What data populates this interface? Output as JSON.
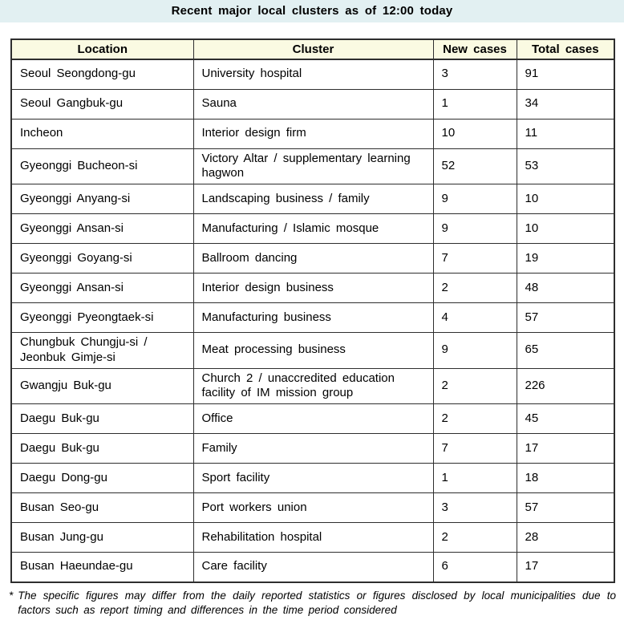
{
  "title": "Recent major local clusters as of 12:00 today",
  "colors": {
    "title_bar_bg": "#E2F0F2",
    "header_bg": "#FAFAE2",
    "border": "#2E2E2E",
    "text": "#000000"
  },
  "table": {
    "columns": [
      "Location",
      "Cluster",
      "New cases",
      "Total cases"
    ],
    "rows": [
      {
        "location": "Seoul Seongdong-gu",
        "cluster": "University hospital",
        "new_cases": "3",
        "total_cases": "91"
      },
      {
        "location": "Seoul Gangbuk-gu",
        "cluster": "Sauna",
        "new_cases": "1",
        "total_cases": "34"
      },
      {
        "location": "Incheon",
        "cluster": "Interior design firm",
        "new_cases": "10",
        "total_cases": "11"
      },
      {
        "location": "Gyeonggi Bucheon-si",
        "cluster": "Victory Altar / supplementary learning hagwon",
        "new_cases": "52",
        "total_cases": "53"
      },
      {
        "location": "Gyeonggi Anyang-si",
        "cluster": "Landscaping business / family",
        "new_cases": "9",
        "total_cases": "10"
      },
      {
        "location": "Gyeonggi Ansan-si",
        "cluster": "Manufacturing / Islamic mosque",
        "new_cases": "9",
        "total_cases": "10"
      },
      {
        "location": "Gyeonggi Goyang-si",
        "cluster": "Ballroom dancing",
        "new_cases": "7",
        "total_cases": "19"
      },
      {
        "location": "Gyeonggi Ansan-si",
        "cluster": "Interior design business",
        "new_cases": "2",
        "total_cases": "48"
      },
      {
        "location": "Gyeonggi Pyeongtaek-si",
        "cluster": "Manufacturing business",
        "new_cases": "4",
        "total_cases": "57"
      },
      {
        "location": "Chungbuk Chungju-si / Jeonbuk Gimje-si",
        "cluster": "Meat processing business",
        "new_cases": "9",
        "total_cases": "65"
      },
      {
        "location": "Gwangju Buk-gu",
        "cluster": "Church 2 / unaccredited education facility of IM mission group",
        "new_cases": "2",
        "total_cases": "226"
      },
      {
        "location": "Daegu Buk-gu",
        "cluster": "Office",
        "new_cases": "2",
        "total_cases": "45"
      },
      {
        "location": "Daegu Buk-gu",
        "cluster": "Family",
        "new_cases": "7",
        "total_cases": "17"
      },
      {
        "location": "Daegu Dong-gu",
        "cluster": "Sport facility",
        "new_cases": "1",
        "total_cases": "18"
      },
      {
        "location": "Busan Seo-gu",
        "cluster": "Port workers union",
        "new_cases": "3",
        "total_cases": "57"
      },
      {
        "location": "Busan Jung-gu",
        "cluster": "Rehabilitation hospital",
        "new_cases": "2",
        "total_cases": "28"
      },
      {
        "location": "Busan Haeundae-gu",
        "cluster": "Care facility",
        "new_cases": "6",
        "total_cases": "17"
      }
    ]
  },
  "footnote": {
    "marker": "*",
    "text": "The specific figures may differ from the daily reported statistics or figures disclosed by local municipalities due to factors such as report timing and differences in the time period considered"
  }
}
